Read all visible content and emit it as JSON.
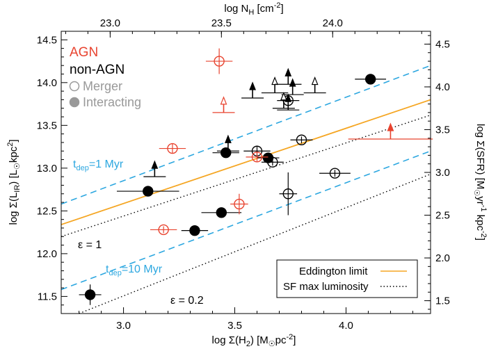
{
  "chart_data": {
    "type": "scatter",
    "xlabel": "log Σ(H₂) [M☉pc⁻²]",
    "ylabel": "log Σ(L_IR) [L☉kpc⁻²]",
    "x2label": "log N_H [cm⁻²]",
    "y2label": "log Σ(SFR) [M☉yr⁻¹ kpc⁻²]",
    "xlim": [
      2.72,
      4.38
    ],
    "ylim": [
      11.3,
      14.6
    ],
    "x_ticks": [
      "3.0",
      "3.5",
      "4.0"
    ],
    "x_tick_values": [
      3.0,
      3.5,
      4.0
    ],
    "y_ticks": [
      "11.5",
      "12.0",
      "12.5",
      "13.0",
      "13.5",
      "14.0",
      "14.5"
    ],
    "y_tick_values": [
      11.5,
      12.0,
      12.5,
      13.0,
      13.5,
      14.0,
      14.5
    ],
    "top_ticks": [
      "23.0",
      "23.5",
      "24.0"
    ],
    "top_tick_xvalues": [
      2.94,
      3.44,
      3.94
    ],
    "right_ticks": [
      "1.5",
      "2.0",
      "2.5",
      "3.0",
      "3.5",
      "4.0",
      "4.5"
    ],
    "right_tick_yvalues": [
      11.45,
      11.95,
      12.45,
      12.95,
      13.45,
      13.95,
      14.45
    ],
    "legend_top": {
      "position": "top-left",
      "agn": "AGN",
      "non_agn": "non-AGN",
      "merger": "Merger",
      "interacting": "Interacting"
    },
    "legend_bottom": {
      "position": "bottom-right",
      "eddington": "Eddington limit",
      "sf_max": "SF max luminosity"
    },
    "annotations": {
      "tdep1_t": "t",
      "tdep1_sub": "dep",
      "tdep1_val": "=1 Myr",
      "tdep10_t": "t",
      "tdep10_sub": "dep",
      "tdep10_val": "=10 Myr",
      "eps1": "ε = 1",
      "eps02": "ε = 0.2"
    },
    "lines": [
      {
        "name": "eddington",
        "color": "#f5a623",
        "style": "solid",
        "points": [
          [
            2.72,
            12.34
          ],
          [
            4.38,
            13.8
          ]
        ]
      },
      {
        "name": "tdep1",
        "color": "#2ca7e0",
        "style": "dashed",
        "points": [
          [
            2.72,
            12.58
          ],
          [
            4.38,
            14.2
          ]
        ]
      },
      {
        "name": "tdep10",
        "color": "#2ca7e0",
        "style": "dashed",
        "points": [
          [
            2.72,
            11.58
          ],
          [
            4.38,
            13.2
          ]
        ]
      },
      {
        "name": "eps1",
        "color": "#000000",
        "style": "dotted",
        "points": [
          [
            2.72,
            12.2
          ],
          [
            4.38,
            13.62
          ]
        ]
      },
      {
        "name": "eps02",
        "color": "#000000",
        "style": "dotted",
        "points": [
          [
            2.8,
            11.3
          ],
          [
            4.38,
            12.93
          ]
        ]
      }
    ],
    "points": [
      {
        "x": 2.85,
        "y": 11.52,
        "type": "interacting",
        "agn": false,
        "xerr": 0.05,
        "yerr": 0.12
      },
      {
        "x": 3.11,
        "y": 12.73,
        "type": "interacting",
        "agn": false,
        "xerr": 0.14,
        "yerr": 0.04
      },
      {
        "x": 3.32,
        "y": 12.27,
        "type": "interacting",
        "agn": false,
        "xerr": 0.06,
        "yerr": 0.05
      },
      {
        "x": 3.44,
        "y": 12.48,
        "type": "interacting",
        "agn": false,
        "xerr": 0.09,
        "yerr": 0.04
      },
      {
        "x": 3.46,
        "y": 13.18,
        "type": "interacting",
        "agn": false,
        "xerr": 0.06,
        "yerr": 0.05
      },
      {
        "x": 3.65,
        "y": 13.12,
        "type": "interacting",
        "agn": false,
        "xerr": 0.05,
        "yerr": 0.05
      },
      {
        "x": 4.11,
        "y": 14.04,
        "type": "interacting",
        "agn": false,
        "xerr": 0.07,
        "yerr": 0.04
      },
      {
        "x": 3.6,
        "y": 13.2,
        "type": "merger",
        "agn": false,
        "xerr": 0.06,
        "yerr": 0.05
      },
      {
        "x": 3.67,
        "y": 13.07,
        "type": "merger",
        "agn": false,
        "xerr": 0.05,
        "yerr": 0.04
      },
      {
        "x": 3.74,
        "y": 12.7,
        "type": "merger",
        "agn": false,
        "xerr": 0.04,
        "yerr": 0.25
      },
      {
        "x": 3.8,
        "y": 13.33,
        "type": "merger",
        "agn": false,
        "xerr": 0.05,
        "yerr": 0.04
      },
      {
        "x": 3.74,
        "y": 13.79,
        "type": "merger",
        "agn": false,
        "xerr": 0.05,
        "yerr": 0.06
      },
      {
        "x": 3.95,
        "y": 12.94,
        "type": "merger",
        "agn": false,
        "xerr": 0.07,
        "yerr": 0.04
      },
      {
        "x": 3.43,
        "y": 14.25,
        "type": "merger",
        "agn": true,
        "xerr": 0.06,
        "yerr": 0.15
      },
      {
        "x": 3.22,
        "y": 13.23,
        "type": "merger",
        "agn": true,
        "xerr": 0.06,
        "yerr": 0.06
      },
      {
        "x": 3.18,
        "y": 12.28,
        "type": "merger",
        "agn": true,
        "xerr": 0.06,
        "yerr": 0.04
      },
      {
        "x": 3.52,
        "y": 12.58,
        "type": "merger",
        "agn": true,
        "xerr": 0.04,
        "yerr": 0.12
      },
      {
        "x": 3.6,
        "y": 13.13,
        "type": "interacting",
        "agn": true,
        "xerr": 0.05,
        "yerr": 0.05
      }
    ],
    "limits": [
      {
        "x": 3.14,
        "y": 12.9,
        "filled": true,
        "agn": false,
        "xerr": 0.05
      },
      {
        "x": 3.47,
        "y": 13.2,
        "filled": true,
        "agn": false,
        "xerr": 0.05
      },
      {
        "x": 3.45,
        "y": 13.65,
        "filled": false,
        "agn": true,
        "xerr": 0.05
      },
      {
        "x": 3.58,
        "y": 13.82,
        "filled": true,
        "agn": false,
        "xerr": 0.05
      },
      {
        "x": 3.68,
        "y": 13.88,
        "filled": false,
        "agn": false,
        "xerr": 0.06
      },
      {
        "x": 3.74,
        "y": 13.98,
        "filled": true,
        "agn": false,
        "xerr": 0.06
      },
      {
        "x": 3.76,
        "y": 13.86,
        "filled": true,
        "agn": false,
        "xerr": 0.05
      },
      {
        "x": 3.72,
        "y": 13.7,
        "filled": false,
        "agn": false,
        "xerr": 0.05
      },
      {
        "x": 3.74,
        "y": 13.68,
        "filled": true,
        "agn": false,
        "xerr": 0.05
      },
      {
        "x": 3.86,
        "y": 13.88,
        "filled": false,
        "agn": false,
        "xerr": 0.05
      },
      {
        "x": 4.2,
        "y": 13.34,
        "filled": true,
        "agn": true,
        "xerr": 0.19
      }
    ],
    "colors": {
      "agn": "#e8432f",
      "non_agn": "#000000",
      "legend_gray": "#999999",
      "tdep": "#2ca7e0",
      "eddington": "#f5a623"
    }
  }
}
